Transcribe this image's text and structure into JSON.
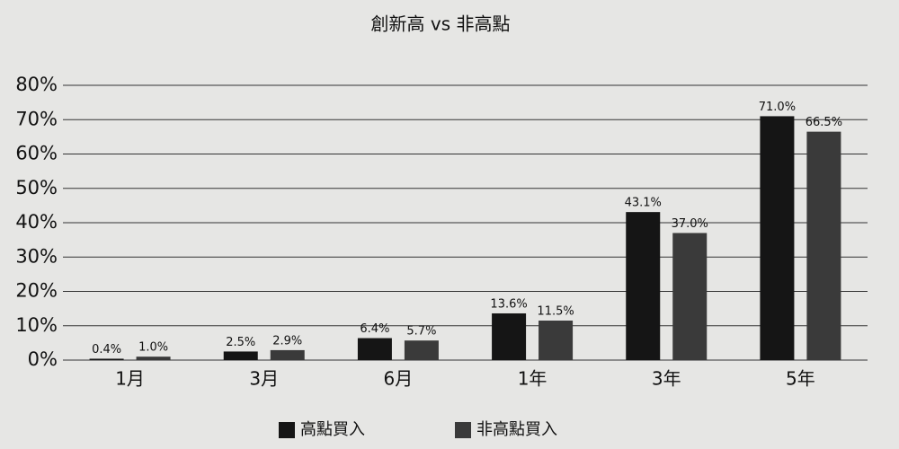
{
  "chart_data": {
    "type": "bar",
    "title": "創新高 vs 非高點",
    "categories": [
      "1月",
      "3月",
      "6月",
      "1年",
      "3年",
      "5年"
    ],
    "series": [
      {
        "name": "高點買入",
        "color": "#151515",
        "values": [
          0.4,
          2.5,
          6.4,
          13.6,
          43.1,
          71.0
        ],
        "value_labels": [
          "0.4%",
          "2.5%",
          "6.4%",
          "13.6%",
          "43.1%",
          "71.0%"
        ]
      },
      {
        "name": "非高點買入",
        "color": "#3a3a3a",
        "values": [
          1.0,
          2.9,
          5.7,
          11.5,
          37.0,
          66.5
        ],
        "value_labels": [
          "1.0%",
          "2.9%",
          "5.7%",
          "11.5%",
          "37.0%",
          "66.5%"
        ]
      }
    ],
    "ylim": [
      0,
      80
    ],
    "yticks": [
      {
        "value": 0,
        "label": "0%"
      },
      {
        "value": 10,
        "label": "10%"
      },
      {
        "value": 20,
        "label": "20%"
      },
      {
        "value": 30,
        "label": "30%"
      },
      {
        "value": 40,
        "label": "40%"
      },
      {
        "value": 50,
        "label": "50%"
      },
      {
        "value": 60,
        "label": "60%"
      },
      {
        "value": 70,
        "label": "70%"
      },
      {
        "value": 80,
        "label": "80%"
      }
    ],
    "grid": true,
    "legend": "bottom"
  }
}
